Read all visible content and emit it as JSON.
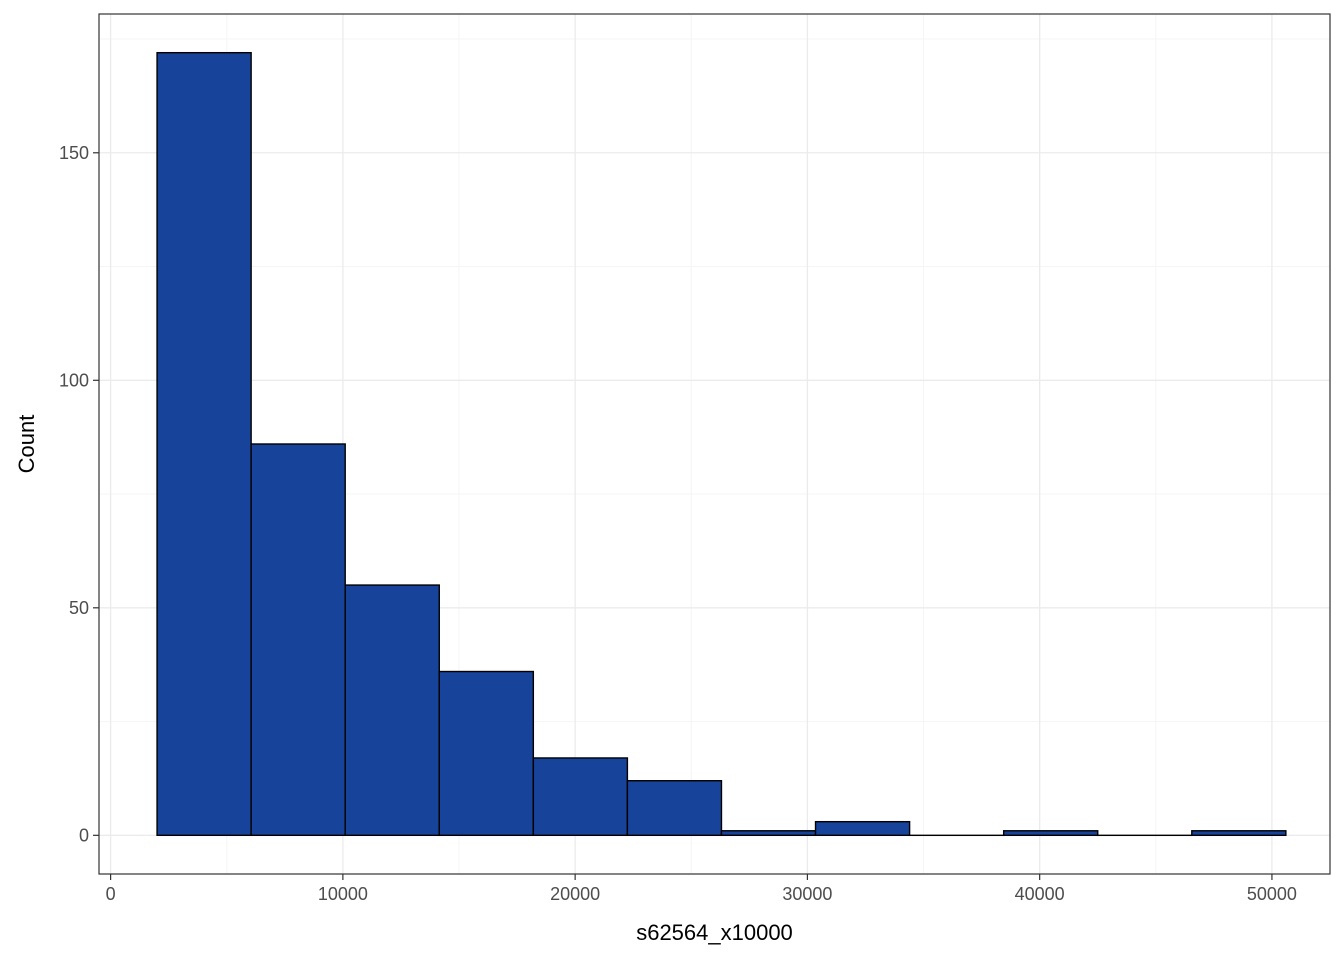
{
  "chart_data": {
    "type": "bar",
    "subtype": "histogram",
    "title": "",
    "xlabel": "s62564_x10000",
    "ylabel": "Count",
    "xlim": [
      -500,
      52500
    ],
    "ylim": [
      -8.5,
      180.5
    ],
    "x_ticks": [
      0,
      10000,
      20000,
      30000,
      40000,
      50000
    ],
    "x_tick_labels": [
      "0",
      "10000",
      "20000",
      "30000",
      "40000",
      "50000"
    ],
    "y_ticks": [
      0,
      50,
      100,
      150
    ],
    "y_tick_labels": [
      "0",
      "50",
      "100",
      "150"
    ],
    "grid": true,
    "legend": "none",
    "bins": [
      {
        "x0": 2000,
        "x1": 6050,
        "count": 172
      },
      {
        "x0": 6050,
        "x1": 10100,
        "count": 86
      },
      {
        "x0": 10100,
        "x1": 14150,
        "count": 55
      },
      {
        "x0": 14150,
        "x1": 18200,
        "count": 36
      },
      {
        "x0": 18200,
        "x1": 22250,
        "count": 17
      },
      {
        "x0": 22250,
        "x1": 26300,
        "count": 12
      },
      {
        "x0": 26300,
        "x1": 30350,
        "count": 1
      },
      {
        "x0": 30350,
        "x1": 34400,
        "count": 3
      },
      {
        "x0": 34400,
        "x1": 38450,
        "count": 0
      },
      {
        "x0": 38450,
        "x1": 42500,
        "count": 1
      },
      {
        "x0": 42500,
        "x1": 46550,
        "count": 0
      },
      {
        "x0": 46550,
        "x1": 50600,
        "count": 1
      }
    ],
    "colors": {
      "bar_fill": "#17439a",
      "bar_stroke": "#000000",
      "panel_border": "#333333",
      "grid_major": "#ebebeb",
      "grid_minor": "#f5f5f5",
      "tick_text": "#4d4d4d"
    }
  }
}
